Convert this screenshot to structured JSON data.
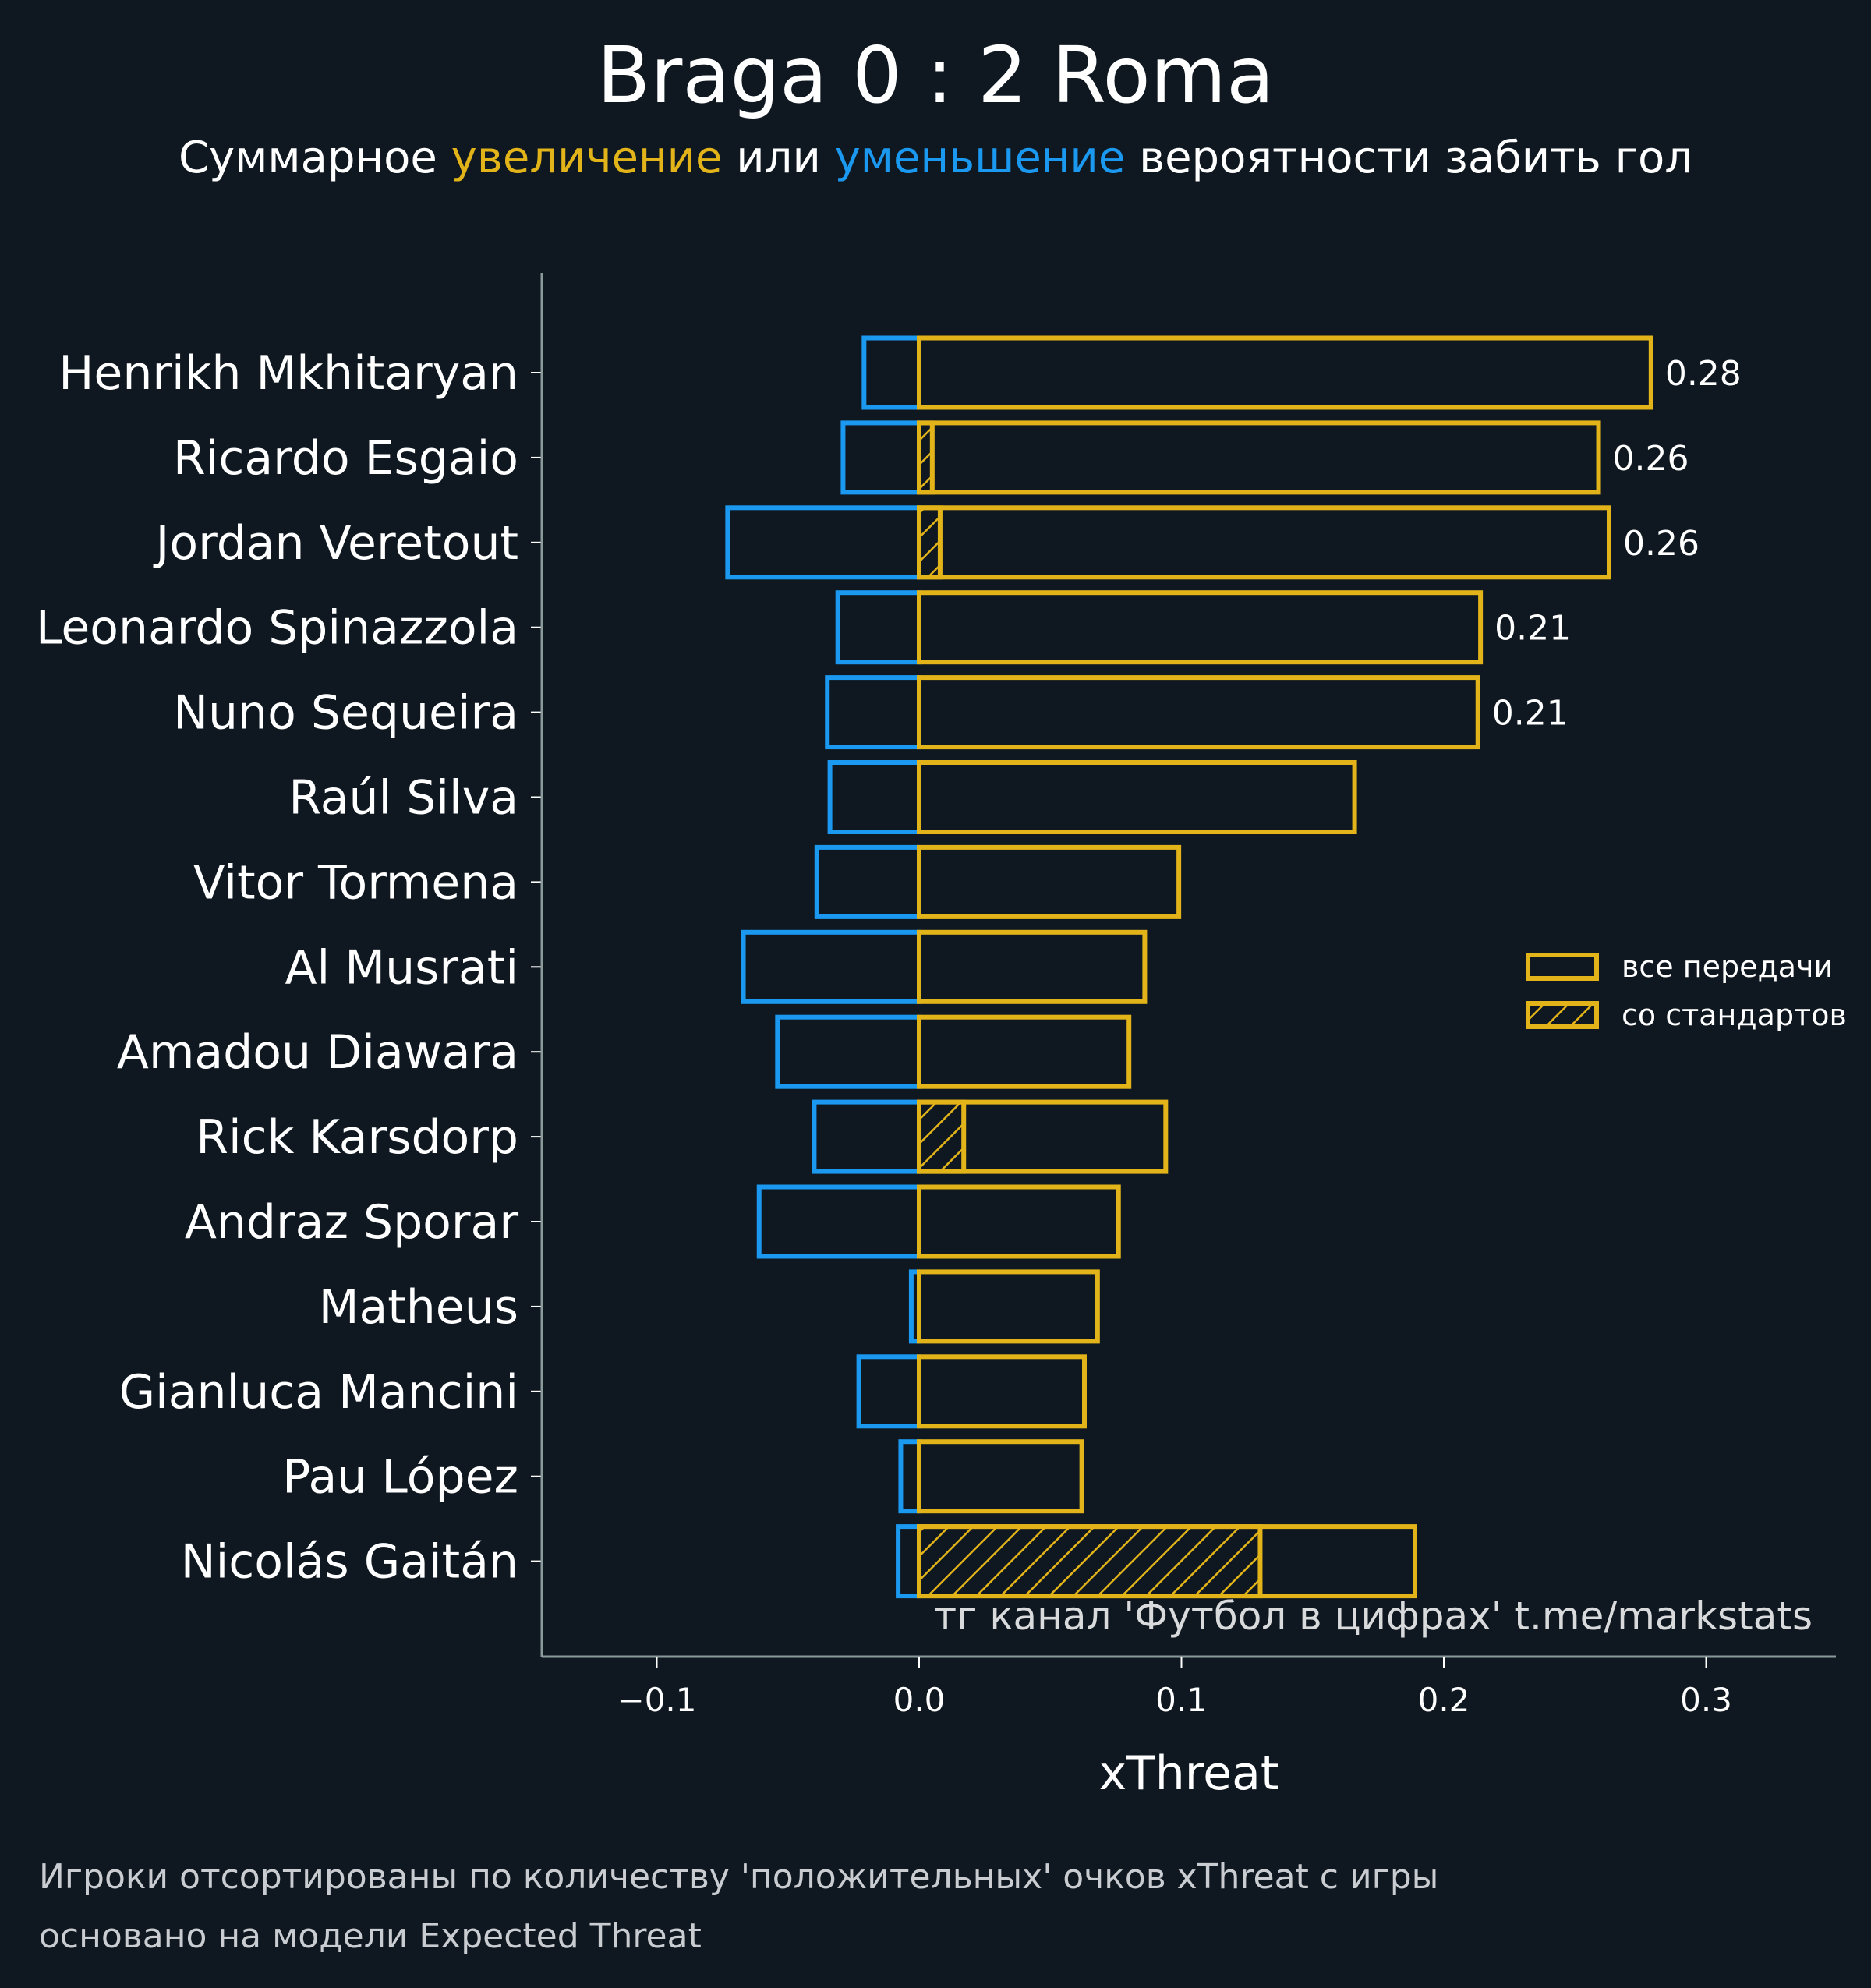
{
  "header": {
    "title": "Braga 0 : 2 Roma",
    "subtitle_parts": [
      {
        "text": "Суммарное ",
        "tone": "plain"
      },
      {
        "text": "увеличение",
        "tone": "gold"
      },
      {
        "text": " или ",
        "tone": "plain"
      },
      {
        "text": "уменьшение",
        "tone": "blue"
      },
      {
        "text": " вероятности забить гол",
        "tone": "plain"
      }
    ]
  },
  "colors": {
    "background": "#0f1820",
    "positive": "#e2b41a",
    "negative": "#1b98f0",
    "axis": "#8a9a9a"
  },
  "chart_data": {
    "type": "bar",
    "orientation": "horizontal",
    "title": "Braga 0 : 2 Roma",
    "subtitle": "Суммарное увеличение или уменьшение вероятности забить гол",
    "xlabel": "xThreat",
    "ylabel": "",
    "xlim": [
      -0.143,
      0.35
    ],
    "xticks": [
      -0.1,
      0.0,
      0.1,
      0.2,
      0.3
    ],
    "xtick_labels": [
      "−0.1",
      "0.0",
      "0.1",
      "0.2",
      "0.3"
    ],
    "grid": false,
    "legend": {
      "placement": "right",
      "entries": [
        {
          "label": "все передачи",
          "style": "outline"
        },
        {
          "label": "со стандартов",
          "style": "hatched"
        }
      ]
    },
    "categories": [
      "Henrikh Mkhitaryan",
      "Ricardo Esgaio",
      "Jordan Veretout",
      "Leonardo Spinazzola",
      "Nuno Sequeira",
      "Raúl Silva",
      "Vitor Tormena",
      "Al Musrati",
      "Amadou Diawara",
      "Rick Karsdorp",
      "Andraz Sporar",
      "Matheus",
      "Gianluca Mancini",
      "Pau López",
      "Nicolás Gaitán"
    ],
    "series": [
      {
        "name": "positive (все передачи)",
        "values": [
          0.279,
          0.259,
          0.263,
          0.214,
          0.213,
          0.166,
          0.099,
          0.086,
          0.08,
          0.094,
          0.076,
          0.068,
          0.063,
          0.062,
          0.189
        ]
      },
      {
        "name": "negative",
        "values": [
          -0.021,
          -0.029,
          -0.073,
          -0.031,
          -0.035,
          -0.034,
          -0.039,
          -0.067,
          -0.054,
          -0.04,
          -0.061,
          -0.003,
          -0.023,
          -0.007,
          -0.008
        ]
      },
      {
        "name": "со стандартов",
        "values": [
          0,
          0.005,
          0.008,
          0,
          0,
          0,
          0,
          0,
          0,
          0.017,
          0,
          0,
          0,
          0,
          0.13
        ]
      }
    ],
    "value_labels": [
      "0.28",
      "0.26",
      "0.26",
      "0.21",
      "0.21",
      "",
      "",
      "",
      "",
      "",
      "",
      "",
      "",
      "",
      ""
    ],
    "annotation": "тг канал 'Футбол в цифрах'  t.me/markstats"
  },
  "footer": {
    "line1": "Игроки отсортированы по количеству 'положительных' очков xThreat с игры",
    "line2": "основано на модели Expected Threat"
  }
}
